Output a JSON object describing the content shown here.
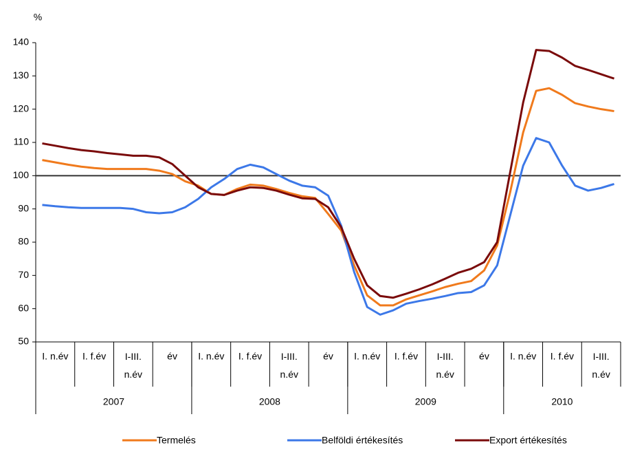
{
  "chart_data": {
    "type": "line",
    "y_unit": "%",
    "categories": [
      null,
      "I. n.év",
      null,
      null,
      "I. f.év",
      null,
      null,
      "I-III. n.év",
      null,
      null,
      "év",
      null,
      null,
      "I. n.év",
      null,
      null,
      "I. f.év",
      null,
      null,
      "I-III. n.év",
      null,
      null,
      "év",
      null,
      null,
      "I. n.év",
      null,
      null,
      "I. f.év",
      null,
      null,
      "I-III. n.év",
      null,
      null,
      "év",
      null,
      null,
      "I. n.év",
      null,
      null,
      "I. f.év",
      null,
      null,
      "I-III. n.év",
      null
    ],
    "year_groups": [
      {
        "name": "2007",
        "size": 12
      },
      {
        "name": "2008",
        "size": 12
      },
      {
        "name": "2009",
        "size": 12
      },
      {
        "name": "2010",
        "size": 9
      }
    ],
    "series": [
      {
        "name": "Termelés",
        "color": "#f07a1c",
        "values": [
          104.7,
          104.0,
          103.3,
          102.7,
          102.3,
          102.0,
          102.0,
          102.0,
          102.0,
          101.5,
          100.5,
          98.3,
          97.0,
          94.5,
          94.2,
          96.0,
          97.3,
          97.0,
          96.0,
          94.8,
          93.8,
          93.3,
          88.5,
          83.5,
          73.0,
          64.0,
          61.0,
          61.0,
          62.8,
          64.0,
          65.2,
          66.5,
          67.5,
          68.3,
          71.5,
          79.0,
          95.0,
          113.0,
          125.5,
          126.3,
          124.3,
          121.8,
          120.8,
          120.0,
          119.4
        ]
      },
      {
        "name": "Belföldi értékesítés",
        "color": "#3c78e8",
        "values": [
          91.2,
          90.8,
          90.5,
          90.3,
          90.3,
          90.3,
          90.3,
          90.0,
          89.0,
          88.7,
          89.0,
          90.5,
          93.0,
          96.5,
          99.0,
          102.0,
          103.3,
          102.5,
          100.5,
          98.5,
          97.0,
          96.5,
          94.0,
          85.0,
          71.0,
          60.5,
          58.2,
          59.5,
          61.5,
          62.3,
          63.0,
          63.8,
          64.7,
          65.0,
          67.0,
          73.0,
          88.0,
          103.0,
          111.3,
          110.0,
          103.0,
          97.0,
          95.5,
          96.3,
          97.5
        ]
      },
      {
        "name": "Export értékesítés",
        "color": "#7a0a0a",
        "values": [
          109.7,
          109.0,
          108.3,
          107.7,
          107.3,
          106.8,
          106.4,
          106.0,
          106.0,
          105.5,
          103.5,
          100.0,
          96.5,
          94.5,
          94.2,
          95.5,
          96.5,
          96.3,
          95.5,
          94.3,
          93.2,
          93.0,
          90.5,
          84.5,
          75.0,
          67.0,
          63.8,
          63.3,
          64.5,
          65.8,
          67.3,
          69.0,
          70.8,
          72.0,
          74.0,
          80.0,
          101.0,
          122.0,
          137.8,
          137.5,
          135.5,
          133.0,
          131.8,
          130.5,
          129.2
        ]
      }
    ],
    "ylim": [
      50,
      140
    ],
    "yticks": [
      50,
      60,
      70,
      80,
      90,
      100,
      110,
      120,
      130,
      140
    ],
    "reference_line": 100,
    "grid": false,
    "legend": "bottom"
  }
}
